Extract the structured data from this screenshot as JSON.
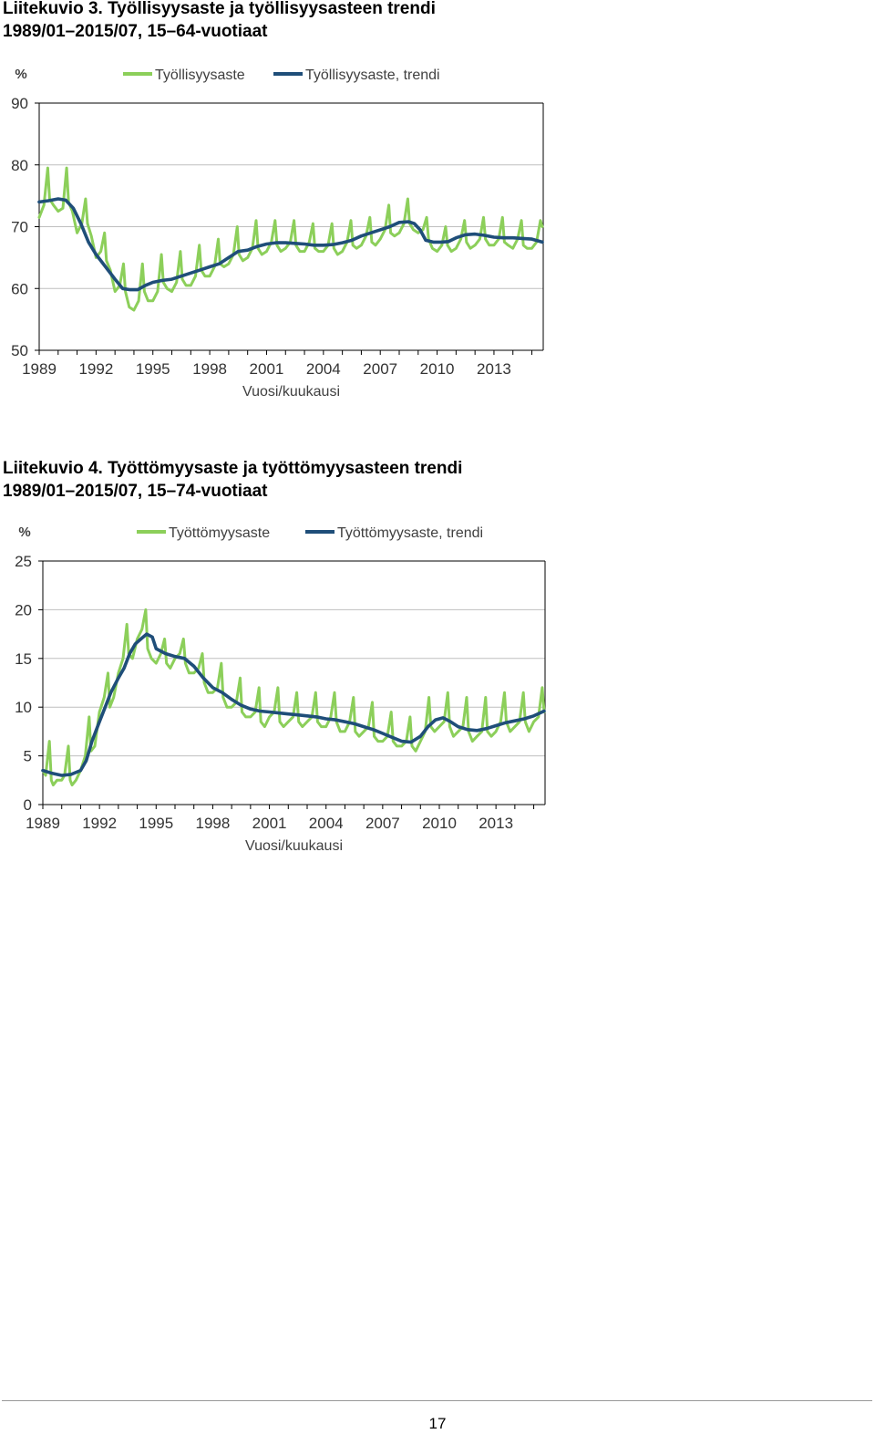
{
  "figure1": {
    "caption_line1": "Liitekuvio 3. Työllisyysaste ja työllisyysasteen trendi",
    "caption_line2": "1989/01–2015/07, 15–64-vuotiaat"
  },
  "figure2": {
    "caption_line1": "Liitekuvio 4. Työttömyysaste ja työttömyysasteen trendi",
    "caption_line2": "1989/01–2015/07, 15–74-vuotiaat"
  },
  "page_number": "17",
  "colors": {
    "raw": "#8ccf5a",
    "trend": "#1f4e79",
    "grid": "#bfbfbf",
    "axis": "#000000"
  },
  "chart_data": [
    {
      "type": "line",
      "unit": "%",
      "xlabel": "Vuosi/kuukausi",
      "ylabel": "",
      "ylim": [
        50,
        90
      ],
      "yticks": [
        50,
        60,
        70,
        80,
        90
      ],
      "xlim": [
        1989.0,
        2015.6
      ],
      "xticks": [
        1989,
        1992,
        1995,
        1998,
        2001,
        2004,
        2007,
        2010,
        2013
      ],
      "grid": true,
      "legend_position": "top",
      "series": [
        {
          "name": "Työllisyysaste",
          "color": "#8ccf5a",
          "x": [
            1989.0,
            1989.25,
            1989.45,
            1989.55,
            1989.75,
            1990.0,
            1990.25,
            1990.45,
            1990.55,
            1990.75,
            1991.0,
            1991.25,
            1991.45,
            1991.55,
            1991.75,
            1992.0,
            1992.25,
            1992.45,
            1992.55,
            1992.75,
            1993.0,
            1993.25,
            1993.45,
            1993.55,
            1993.75,
            1994.0,
            1994.25,
            1994.45,
            1994.55,
            1994.75,
            1995.0,
            1995.25,
            1995.45,
            1995.55,
            1995.75,
            1996.0,
            1996.25,
            1996.45,
            1996.55,
            1996.75,
            1997.0,
            1997.25,
            1997.45,
            1997.55,
            1997.75,
            1998.0,
            1998.25,
            1998.45,
            1998.55,
            1998.75,
            1999.0,
            1999.25,
            1999.45,
            1999.55,
            1999.75,
            2000.0,
            2000.25,
            2000.45,
            2000.55,
            2000.75,
            2001.0,
            2001.25,
            2001.45,
            2001.55,
            2001.75,
            2002.0,
            2002.25,
            2002.45,
            2002.55,
            2002.75,
            2003.0,
            2003.25,
            2003.45,
            2003.55,
            2003.75,
            2004.0,
            2004.25,
            2004.45,
            2004.55,
            2004.75,
            2005.0,
            2005.25,
            2005.45,
            2005.55,
            2005.75,
            2006.0,
            2006.25,
            2006.45,
            2006.55,
            2006.75,
            2007.0,
            2007.25,
            2007.45,
            2007.55,
            2007.75,
            2008.0,
            2008.25,
            2008.45,
            2008.55,
            2008.75,
            2009.0,
            2009.25,
            2009.45,
            2009.55,
            2009.75,
            2010.0,
            2010.25,
            2010.45,
            2010.55,
            2010.75,
            2011.0,
            2011.25,
            2011.45,
            2011.55,
            2011.75,
            2012.0,
            2012.25,
            2012.45,
            2012.55,
            2012.75,
            2013.0,
            2013.25,
            2013.45,
            2013.55,
            2013.75,
            2014.0,
            2014.25,
            2014.45,
            2014.55,
            2014.75,
            2015.0,
            2015.25,
            2015.45,
            2015.55
          ],
          "values": [
            71.5,
            73.5,
            79.5,
            74.5,
            73.5,
            72.5,
            73.0,
            79.5,
            74.0,
            72.5,
            69.0,
            70.5,
            74.5,
            70.5,
            68.5,
            65.0,
            66.0,
            69.0,
            64.5,
            63.0,
            59.5,
            60.5,
            64.0,
            59.5,
            57.0,
            56.5,
            58.0,
            64.0,
            59.5,
            58.0,
            58.0,
            59.5,
            65.5,
            61.0,
            60.0,
            59.5,
            61.0,
            66.0,
            61.5,
            60.5,
            60.5,
            62.0,
            67.0,
            63.0,
            62.0,
            62.0,
            63.5,
            68.0,
            64.0,
            63.5,
            64.0,
            65.5,
            70.0,
            65.5,
            64.5,
            65.0,
            66.5,
            71.0,
            66.5,
            65.5,
            66.0,
            67.5,
            71.0,
            67.0,
            66.0,
            66.5,
            67.5,
            71.0,
            67.0,
            66.0,
            66.0,
            67.5,
            70.5,
            66.5,
            66.0,
            66.0,
            67.0,
            70.5,
            66.5,
            65.5,
            66.0,
            67.5,
            71.0,
            67.0,
            66.5,
            67.0,
            68.5,
            71.5,
            67.5,
            67.0,
            68.0,
            69.5,
            73.5,
            69.0,
            68.5,
            69.0,
            70.5,
            74.5,
            70.5,
            69.5,
            69.0,
            69.5,
            71.5,
            68.0,
            66.5,
            66.0,
            67.0,
            70.0,
            67.0,
            66.0,
            66.5,
            68.0,
            71.0,
            67.5,
            66.5,
            67.0,
            68.0,
            71.5,
            68.0,
            67.0,
            67.0,
            68.0,
            71.5,
            67.5,
            67.0,
            66.5,
            68.0,
            71.0,
            67.0,
            66.5,
            66.5,
            67.5,
            71.0,
            70.0
          ]
        },
        {
          "name": "Työllisyysaste, trendi",
          "color": "#1f4e79",
          "x": [
            1989.0,
            1989.5,
            1990.0,
            1990.4,
            1990.8,
            1991.2,
            1991.6,
            1992.0,
            1992.5,
            1993.0,
            1993.4,
            1993.8,
            1994.2,
            1994.6,
            1995.0,
            1995.5,
            1996.0,
            1996.5,
            1997.0,
            1997.5,
            1998.0,
            1998.5,
            1999.0,
            1999.5,
            2000.0,
            2000.5,
            2001.0,
            2001.5,
            2002.0,
            2002.5,
            2003.0,
            2003.5,
            2004.0,
            2004.5,
            2005.0,
            2005.5,
            2006.0,
            2006.5,
            2007.0,
            2007.5,
            2008.0,
            2008.5,
            2008.8,
            2009.1,
            2009.4,
            2009.8,
            2010.2,
            2010.6,
            2011.0,
            2011.5,
            2012.0,
            2012.5,
            2013.0,
            2013.5,
            2014.0,
            2014.5,
            2015.0,
            2015.55
          ],
          "values": [
            74.0,
            74.2,
            74.5,
            74.3,
            73.0,
            70.5,
            67.5,
            65.5,
            63.5,
            61.5,
            60.0,
            59.8,
            59.8,
            60.5,
            61.0,
            61.3,
            61.5,
            62.0,
            62.5,
            63.0,
            63.5,
            64.0,
            65.0,
            66.0,
            66.2,
            66.8,
            67.2,
            67.4,
            67.4,
            67.3,
            67.2,
            67.0,
            67.0,
            67.1,
            67.4,
            67.8,
            68.5,
            69.0,
            69.5,
            70.0,
            70.7,
            70.8,
            70.5,
            69.5,
            67.8,
            67.5,
            67.5,
            67.6,
            68.2,
            68.7,
            68.8,
            68.6,
            68.3,
            68.2,
            68.2,
            68.1,
            68.0,
            67.5
          ]
        }
      ]
    },
    {
      "type": "line",
      "unit": "%",
      "xlabel": "Vuosi/kuukausi",
      "ylabel": "",
      "ylim": [
        0,
        25
      ],
      "yticks": [
        0,
        5,
        10,
        15,
        20,
        25
      ],
      "xlim": [
        1989.0,
        2015.6
      ],
      "xticks": [
        1989,
        1992,
        1995,
        1998,
        2001,
        2004,
        2007,
        2010,
        2013
      ],
      "grid": true,
      "legend_position": "top",
      "series": [
        {
          "name": "Työttömyysaste",
          "color": "#8ccf5a",
          "x": [
            1989.0,
            1989.15,
            1989.35,
            1989.45,
            1989.55,
            1989.75,
            1990.0,
            1990.15,
            1990.35,
            1990.45,
            1990.55,
            1990.75,
            1991.0,
            1991.25,
            1991.45,
            1991.55,
            1991.75,
            1992.0,
            1992.25,
            1992.45,
            1992.55,
            1992.75,
            1993.0,
            1993.25,
            1993.45,
            1993.55,
            1993.75,
            1994.0,
            1994.25,
            1994.45,
            1994.55,
            1994.75,
            1995.0,
            1995.25,
            1995.45,
            1995.55,
            1995.75,
            1996.0,
            1996.25,
            1996.45,
            1996.55,
            1996.75,
            1997.0,
            1997.25,
            1997.45,
            1997.55,
            1997.75,
            1998.0,
            1998.25,
            1998.45,
            1998.55,
            1998.75,
            1999.0,
            1999.25,
            1999.45,
            1999.55,
            1999.75,
            2000.0,
            2000.25,
            2000.45,
            2000.55,
            2000.75,
            2001.0,
            2001.25,
            2001.45,
            2001.55,
            2001.75,
            2002.0,
            2002.25,
            2002.45,
            2002.55,
            2002.75,
            2003.0,
            2003.25,
            2003.45,
            2003.55,
            2003.75,
            2004.0,
            2004.25,
            2004.45,
            2004.55,
            2004.75,
            2005.0,
            2005.25,
            2005.45,
            2005.55,
            2005.75,
            2006.0,
            2006.25,
            2006.45,
            2006.55,
            2006.75,
            2007.0,
            2007.25,
            2007.45,
            2007.55,
            2007.75,
            2008.0,
            2008.25,
            2008.45,
            2008.55,
            2008.75,
            2009.0,
            2009.25,
            2009.45,
            2009.55,
            2009.75,
            2010.0,
            2010.25,
            2010.45,
            2010.55,
            2010.75,
            2011.0,
            2011.25,
            2011.45,
            2011.55,
            2011.75,
            2012.0,
            2012.25,
            2012.45,
            2012.55,
            2012.75,
            2013.0,
            2013.25,
            2013.45,
            2013.55,
            2013.75,
            2014.0,
            2014.25,
            2014.45,
            2014.55,
            2014.75,
            2015.0,
            2015.25,
            2015.45,
            2015.55
          ],
          "values": [
            3.5,
            3.0,
            6.5,
            2.5,
            2.0,
            2.5,
            2.5,
            3.0,
            6.0,
            2.5,
            2.0,
            2.5,
            3.5,
            5.0,
            9.0,
            5.5,
            6.0,
            9.5,
            11.0,
            13.5,
            10.0,
            11.0,
            13.5,
            15.0,
            18.5,
            15.5,
            15.0,
            17.0,
            18.0,
            20.0,
            16.0,
            15.0,
            14.5,
            15.5,
            17.0,
            14.5,
            14.0,
            15.0,
            15.5,
            17.0,
            14.5,
            13.5,
            13.5,
            14.0,
            15.5,
            12.5,
            11.5,
            11.5,
            12.0,
            14.5,
            11.0,
            10.0,
            10.0,
            10.5,
            13.0,
            9.5,
            9.0,
            9.0,
            9.5,
            12.0,
            8.5,
            8.0,
            9.0,
            9.5,
            12.0,
            8.5,
            8.0,
            8.5,
            9.0,
            11.5,
            8.5,
            8.0,
            8.5,
            9.0,
            11.5,
            8.5,
            8.0,
            8.0,
            9.0,
            11.5,
            8.5,
            7.5,
            7.5,
            8.5,
            11.0,
            7.5,
            7.0,
            7.5,
            8.0,
            10.5,
            7.0,
            6.5,
            6.5,
            7.0,
            9.5,
            6.5,
            6.0,
            6.0,
            6.5,
            9.0,
            6.0,
            5.5,
            6.5,
            7.5,
            11.0,
            8.0,
            7.5,
            8.0,
            8.5,
            11.5,
            8.0,
            7.0,
            7.5,
            8.0,
            11.0,
            7.5,
            6.5,
            7.0,
            7.5,
            11.0,
            7.5,
            7.0,
            7.5,
            8.5,
            11.5,
            8.5,
            7.5,
            8.0,
            8.5,
            11.5,
            8.5,
            7.5,
            8.5,
            9.0,
            12.0,
            9.5
          ]
        },
        {
          "name": "Työttömyysaste, trendi",
          "color": "#1f4e79",
          "x": [
            1989.0,
            1989.5,
            1990.0,
            1990.5,
            1991.0,
            1991.3,
            1991.6,
            1992.0,
            1992.3,
            1992.6,
            1993.0,
            1993.3,
            1993.6,
            1993.9,
            1994.2,
            1994.5,
            1994.8,
            1995.0,
            1995.5,
            1996.0,
            1996.5,
            1997.0,
            1997.5,
            1998.0,
            1998.5,
            1999.0,
            1999.5,
            2000.0,
            2000.5,
            2001.0,
            2001.5,
            2002.0,
            2002.5,
            2003.0,
            2003.5,
            2004.0,
            2004.5,
            2005.0,
            2005.5,
            2006.0,
            2006.5,
            2007.0,
            2007.5,
            2008.0,
            2008.5,
            2009.0,
            2009.4,
            2009.8,
            2010.2,
            2010.6,
            2011.0,
            2011.5,
            2012.0,
            2012.5,
            2013.0,
            2013.5,
            2014.0,
            2014.5,
            2015.0,
            2015.55
          ],
          "values": [
            3.5,
            3.2,
            3.0,
            3.1,
            3.5,
            4.5,
            6.5,
            8.5,
            10.0,
            11.5,
            13.0,
            14.0,
            15.5,
            16.5,
            17.0,
            17.5,
            17.2,
            16.0,
            15.5,
            15.2,
            15.0,
            14.2,
            13.0,
            12.0,
            11.5,
            10.8,
            10.2,
            9.8,
            9.6,
            9.5,
            9.4,
            9.3,
            9.2,
            9.1,
            9.0,
            8.8,
            8.7,
            8.5,
            8.3,
            8.0,
            7.7,
            7.3,
            6.9,
            6.5,
            6.4,
            7.0,
            8.0,
            8.7,
            8.9,
            8.5,
            8.0,
            7.7,
            7.6,
            7.8,
            8.1,
            8.4,
            8.6,
            8.8,
            9.1,
            9.6
          ]
        }
      ]
    }
  ]
}
